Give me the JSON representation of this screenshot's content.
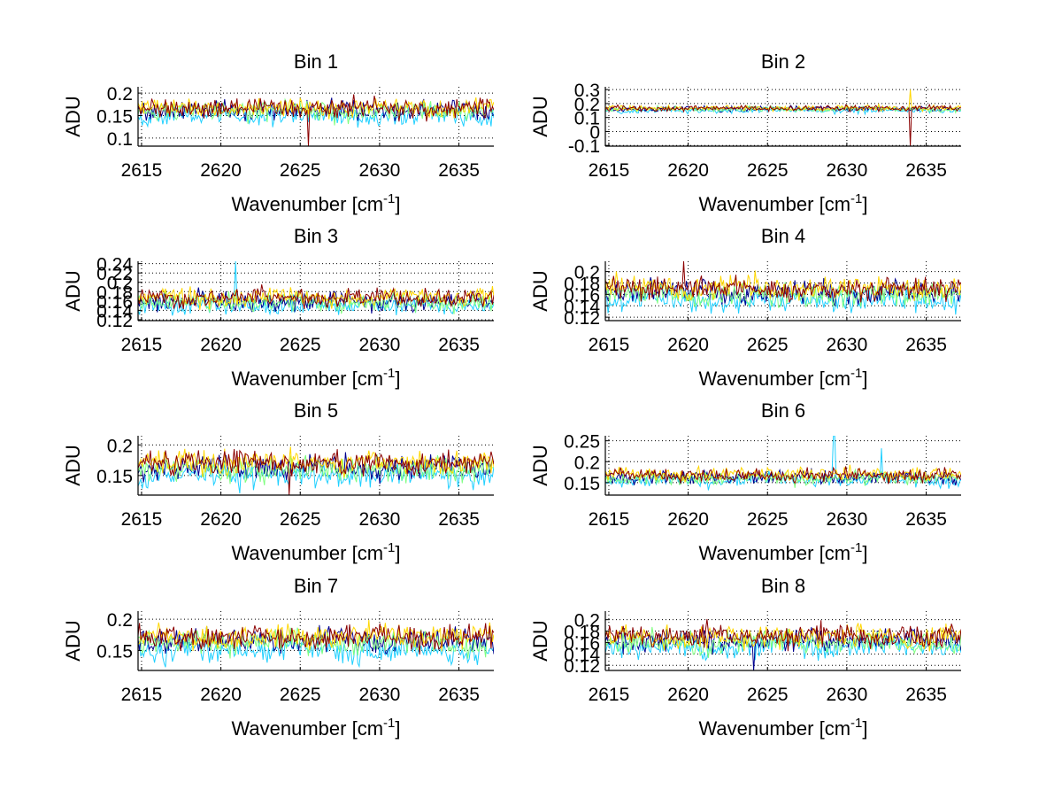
{
  "figure": {
    "background": "#ffffff",
    "panels_layout": "4 rows x 2 columns"
  },
  "chart_data": [
    {
      "type": "line",
      "title": "Bin 1",
      "xlabel": "Wavenumber [cm^-1]",
      "xlabel_base": "Wavenumber [cm",
      "xlabel_sup": "-1",
      "xlabel_end": "]",
      "ylabel": "ADU",
      "xlim": [
        2614.78,
        2637.2
      ],
      "ylim": [
        0.082,
        0.214
      ],
      "xticks": [
        2615,
        2620,
        2625,
        2630,
        2635
      ],
      "xtick_labels": [
        "2615",
        "2620",
        "2625",
        "2630",
        "2635"
      ],
      "yticks": [
        0.1,
        0.15,
        0.2
      ],
      "ytick_labels": [
        "0.1",
        "0.15",
        "0.2"
      ],
      "grid": true,
      "series_count": 5,
      "series_colors": [
        "#00008f",
        "#20d0ff",
        "#7fff7f",
        "#ffd700",
        "#8b0000"
      ],
      "series_means": [
        0.163,
        0.15,
        0.16,
        0.168,
        0.166
      ],
      "noise_amplitude": 0.013,
      "features": [
        {
          "x": 2625.5,
          "y_min": 0.082,
          "series": 4,
          "note": "sharp dip"
        }
      ]
    },
    {
      "type": "line",
      "title": "Bin 2",
      "xlabel": "Wavenumber [cm^-1]",
      "xlabel_base": "Wavenumber [cm",
      "xlabel_sup": "-1",
      "xlabel_end": "]",
      "ylabel": "ADU",
      "xlim": [
        2614.78,
        2637.2
      ],
      "ylim": [
        -0.105,
        0.32
      ],
      "xticks": [
        2615,
        2620,
        2625,
        2630,
        2635
      ],
      "xtick_labels": [
        "2615",
        "2620",
        "2625",
        "2630",
        "2635"
      ],
      "yticks": [
        -0.1,
        0,
        0.1,
        0.2,
        0.3
      ],
      "ytick_labels": [
        "-0.1",
        "0",
        "0.1",
        "0.2",
        "0.3"
      ],
      "grid": true,
      "series_count": 5,
      "series_colors": [
        "#00008f",
        "#20d0ff",
        "#7fff7f",
        "#ffd700",
        "#8b0000"
      ],
      "series_means": [
        0.163,
        0.15,
        0.16,
        0.168,
        0.166
      ],
      "noise_amplitude": 0.012,
      "features": [
        {
          "x": 2634.0,
          "y_min": -0.105,
          "series": 4,
          "note": "deep negative spike"
        },
        {
          "x": 2634.0,
          "y_max": 0.3,
          "series": 3,
          "note": "positive spike"
        }
      ]
    },
    {
      "type": "line",
      "title": "Bin 3",
      "xlabel": "Wavenumber [cm^-1]",
      "xlabel_base": "Wavenumber [cm",
      "xlabel_sup": "-1",
      "xlabel_end": "]",
      "ylabel": "ADU",
      "xlim": [
        2614.78,
        2637.2
      ],
      "ylim": [
        0.118,
        0.245
      ],
      "xticks": [
        2615,
        2620,
        2625,
        2630,
        2635
      ],
      "xtick_labels": [
        "2615",
        "2620",
        "2625",
        "2630",
        "2635"
      ],
      "yticks": [
        0.12,
        0.14,
        0.16,
        0.18,
        0.2,
        0.22,
        0.24
      ],
      "ytick_labels": [
        "0.12",
        "0.14",
        "0.16",
        "0.18",
        "0.2",
        "0.22",
        "0.24"
      ],
      "grid": true,
      "series_count": 5,
      "series_colors": [
        "#00008f",
        "#20d0ff",
        "#7fff7f",
        "#ffd700",
        "#8b0000"
      ],
      "series_means": [
        0.16,
        0.15,
        0.158,
        0.168,
        0.166
      ],
      "noise_amplitude": 0.012,
      "features": [
        {
          "x": 2620.9,
          "y_max": 0.245,
          "series": 1,
          "note": "spike"
        }
      ]
    },
    {
      "type": "line",
      "title": "Bin 4",
      "xlabel": "Wavenumber [cm^-1]",
      "xlabel_base": "Wavenumber [cm",
      "xlabel_sup": "-1",
      "xlabel_end": "]",
      "ylabel": "ADU",
      "xlim": [
        2614.78,
        2637.2
      ],
      "ylim": [
        0.114,
        0.218
      ],
      "xticks": [
        2615,
        2620,
        2625,
        2630,
        2635
      ],
      "xtick_labels": [
        "2615",
        "2620",
        "2625",
        "2630",
        "2635"
      ],
      "yticks": [
        0.12,
        0.14,
        0.16,
        0.18,
        0.2
      ],
      "ytick_labels": [
        "0.12",
        "0.14",
        "0.16",
        "0.18",
        "0.2"
      ],
      "grid": true,
      "series_count": 5,
      "series_colors": [
        "#00008f",
        "#20d0ff",
        "#7fff7f",
        "#ffd700",
        "#8b0000"
      ],
      "series_means": [
        0.165,
        0.15,
        0.16,
        0.172,
        0.17
      ],
      "noise_amplitude": 0.012,
      "features": [
        {
          "x": 2619.7,
          "y_max": 0.218,
          "series": 4,
          "note": "spike"
        }
      ]
    },
    {
      "type": "line",
      "title": "Bin 5",
      "xlabel": "Wavenumber [cm^-1]",
      "xlabel_base": "Wavenumber [cm",
      "xlabel_sup": "-1",
      "xlabel_end": "]",
      "ylabel": "ADU",
      "xlim": [
        2614.78,
        2637.2
      ],
      "ylim": [
        0.118,
        0.215
      ],
      "xticks": [
        2615,
        2620,
        2625,
        2630,
        2635
      ],
      "xtick_labels": [
        "2615",
        "2620",
        "2625",
        "2630",
        "2635"
      ],
      "yticks": [
        0.15,
        0.2
      ],
      "ytick_labels": [
        "0.15",
        "0.2"
      ],
      "grid": true,
      "series_count": 5,
      "series_colors": [
        "#00008f",
        "#20d0ff",
        "#7fff7f",
        "#ffd700",
        "#8b0000"
      ],
      "series_means": [
        0.163,
        0.15,
        0.16,
        0.172,
        0.172
      ],
      "noise_amplitude": 0.012,
      "features": [
        {
          "x": 2624.3,
          "y_min": 0.118,
          "series": 4,
          "note": "dip"
        }
      ]
    },
    {
      "type": "line",
      "title": "Bin 6",
      "xlabel": "Wavenumber [cm^-1]",
      "xlabel_base": "Wavenumber [cm",
      "xlabel_sup": "-1",
      "xlabel_end": "]",
      "ylabel": "ADU",
      "xlim": [
        2614.78,
        2637.2
      ],
      "ylim": [
        0.12,
        0.262
      ],
      "xticks": [
        2615,
        2620,
        2625,
        2630,
        2635
      ],
      "xtick_labels": [
        "2615",
        "2620",
        "2625",
        "2630",
        "2635"
      ],
      "yticks": [
        0.15,
        0.2,
        0.25
      ],
      "ytick_labels": [
        "0.15",
        "0.2",
        "0.25"
      ],
      "grid": true,
      "series_count": 5,
      "series_colors": [
        "#00008f",
        "#20d0ff",
        "#7fff7f",
        "#ffd700",
        "#8b0000"
      ],
      "series_means": [
        0.163,
        0.155,
        0.16,
        0.17,
        0.168
      ],
      "noise_amplitude": 0.01,
      "features": [
        {
          "x": 2629.2,
          "y_max": 0.262,
          "series": 1,
          "note": "spike"
        },
        {
          "x": 2632.2,
          "y_max": 0.232,
          "series": 1,
          "note": "spike"
        }
      ]
    },
    {
      "type": "line",
      "title": "Bin 7",
      "xlabel": "Wavenumber [cm^-1]",
      "xlabel_base": "Wavenumber [cm",
      "xlabel_sup": "-1",
      "xlabel_end": "]",
      "ylabel": "ADU",
      "xlim": [
        2614.78,
        2637.2
      ],
      "ylim": [
        0.118,
        0.213
      ],
      "xticks": [
        2615,
        2620,
        2625,
        2630,
        2635
      ],
      "xtick_labels": [
        "2615",
        "2620",
        "2625",
        "2630",
        "2635"
      ],
      "yticks": [
        0.15,
        0.2
      ],
      "ytick_labels": [
        "0.15",
        "0.2"
      ],
      "grid": true,
      "series_count": 5,
      "series_colors": [
        "#00008f",
        "#20d0ff",
        "#7fff7f",
        "#ffd700",
        "#8b0000"
      ],
      "series_means": [
        0.166,
        0.15,
        0.162,
        0.174,
        0.172
      ],
      "noise_amplitude": 0.012,
      "features": []
    },
    {
      "type": "line",
      "title": "Bin 8",
      "xlabel": "Wavenumber [cm^-1]",
      "xlabel_base": "Wavenumber [cm",
      "xlabel_sup": "-1",
      "xlabel_end": "]",
      "ylabel": "ADU",
      "xlim": [
        2614.78,
        2637.2
      ],
      "ylim": [
        0.111,
        0.215
      ],
      "xticks": [
        2615,
        2620,
        2625,
        2630,
        2635
      ],
      "xtick_labels": [
        "2615",
        "2620",
        "2625",
        "2630",
        "2635"
      ],
      "yticks": [
        0.12,
        0.14,
        0.16,
        0.18,
        0.2
      ],
      "ytick_labels": [
        "0.12",
        "0.14",
        "0.16",
        "0.18",
        "0.2"
      ],
      "grid": true,
      "series_count": 5,
      "series_colors": [
        "#00008f",
        "#20d0ff",
        "#7fff7f",
        "#ffd700",
        "#8b0000"
      ],
      "series_means": [
        0.163,
        0.152,
        0.16,
        0.17,
        0.172
      ],
      "noise_amplitude": 0.012,
      "features": [
        {
          "x": 2624.1,
          "y_min": 0.111,
          "series": 0,
          "note": "dip"
        }
      ]
    }
  ]
}
